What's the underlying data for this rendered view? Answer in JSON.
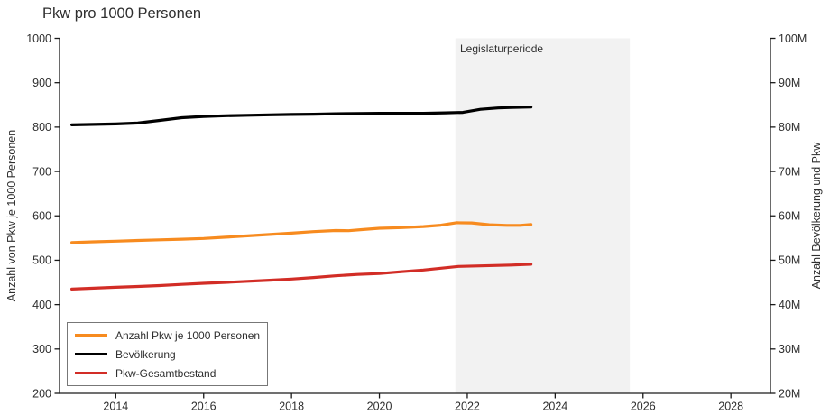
{
  "title": "Pkw pro 1000 Personen",
  "chart_data": {
    "type": "line",
    "title": "Pkw pro 1000 Personen",
    "xlabel": "",
    "ylabel_left": "Anzahl von Pkw je 1000 Personen",
    "ylabel_right": "Anzahl Bevölkerung und Pkw",
    "xlim": [
      2012.72,
      2028.9
    ],
    "ylim_left": [
      200,
      1000
    ],
    "ylim_right_millions": [
      20,
      100
    ],
    "x_ticks": [
      2014,
      2016,
      2018,
      2020,
      2022,
      2024,
      2026,
      2028
    ],
    "y_ticks_left": [
      200,
      300,
      400,
      500,
      600,
      700,
      800,
      900,
      1000
    ],
    "y_ticks_right": [
      20,
      30,
      40,
      50,
      60,
      70,
      80,
      90,
      100
    ],
    "y_ticks_right_labels": [
      "20M",
      "30M",
      "40M",
      "50M",
      "60M",
      "70M",
      "80M",
      "90M",
      "100M"
    ],
    "grid": false,
    "legend_position": "bottom-left",
    "background_color": "#ffffff",
    "axis_color": "#1a1a1a",
    "shaded_region": {
      "label": "Legislaturperiode",
      "x_start": 2021.73,
      "x_end": 2025.7,
      "color": "#f2f2f2"
    },
    "series": [
      {
        "name": "Anzahl Pkw je 1000 Personen",
        "axis": "left",
        "unit": "Pkw je 1000 Personen",
        "color": "#f78b1f",
        "x": [
          2013.0,
          2013.5,
          2014.0,
          2014.5,
          2015.0,
          2015.5,
          2016.0,
          2016.5,
          2017.0,
          2017.5,
          2018.0,
          2018.5,
          2019.0,
          2019.3,
          2019.6,
          2020.0,
          2020.5,
          2021.0,
          2021.4,
          2021.75,
          2022.1,
          2022.5,
          2022.9,
          2023.2,
          2023.45
        ],
        "y": [
          540,
          541.5,
          543,
          544.5,
          546,
          547.5,
          549,
          552,
          555,
          558,
          561,
          564.5,
          567,
          566.5,
          569,
          572,
          573.5,
          576,
          579,
          584.5,
          584,
          580,
          578.5,
          578.5,
          580.5
        ]
      },
      {
        "name": "Bevölkerung",
        "axis": "right",
        "unit": "millions",
        "color": "#000000",
        "x": [
          2013.0,
          2013.5,
          2014.0,
          2014.5,
          2015.0,
          2015.5,
          2016.0,
          2016.5,
          2017.0,
          2017.5,
          2018.0,
          2018.5,
          2019.0,
          2019.5,
          2020.0,
          2020.5,
          2021.0,
          2021.5,
          2021.9,
          2022.3,
          2022.7,
          2023.0,
          2023.45
        ],
        "y": [
          80.5,
          80.6,
          80.7,
          80.9,
          81.5,
          82.1,
          82.4,
          82.55,
          82.65,
          82.75,
          82.85,
          82.9,
          83.0,
          83.05,
          83.1,
          83.1,
          83.1,
          83.2,
          83.3,
          84.0,
          84.3,
          84.4,
          84.5
        ]
      },
      {
        "name": "Pkw-Gesamtbestand",
        "axis": "right",
        "unit": "millions",
        "color": "#d22d26",
        "x": [
          2013.0,
          2013.5,
          2014.0,
          2014.5,
          2015.0,
          2015.5,
          2016.0,
          2016.5,
          2017.0,
          2017.5,
          2018.0,
          2018.5,
          2019.0,
          2019.5,
          2020.0,
          2020.5,
          2021.0,
          2021.4,
          2021.8,
          2022.2,
          2022.6,
          2023.0,
          2023.45
        ],
        "y": [
          43.5,
          43.7,
          43.9,
          44.1,
          44.3,
          44.55,
          44.8,
          45.0,
          45.25,
          45.5,
          45.75,
          46.1,
          46.5,
          46.8,
          47.0,
          47.4,
          47.8,
          48.2,
          48.6,
          48.7,
          48.8,
          48.9,
          49.1
        ]
      }
    ]
  },
  "legend": {
    "items": [
      {
        "label": "Anzahl Pkw je 1000 Personen",
        "color": "#f78b1f"
      },
      {
        "label": "Bevölkerung",
        "color": "#000000"
      },
      {
        "label": "Pkw-Gesamtbestand",
        "color": "#d22d26"
      }
    ]
  }
}
